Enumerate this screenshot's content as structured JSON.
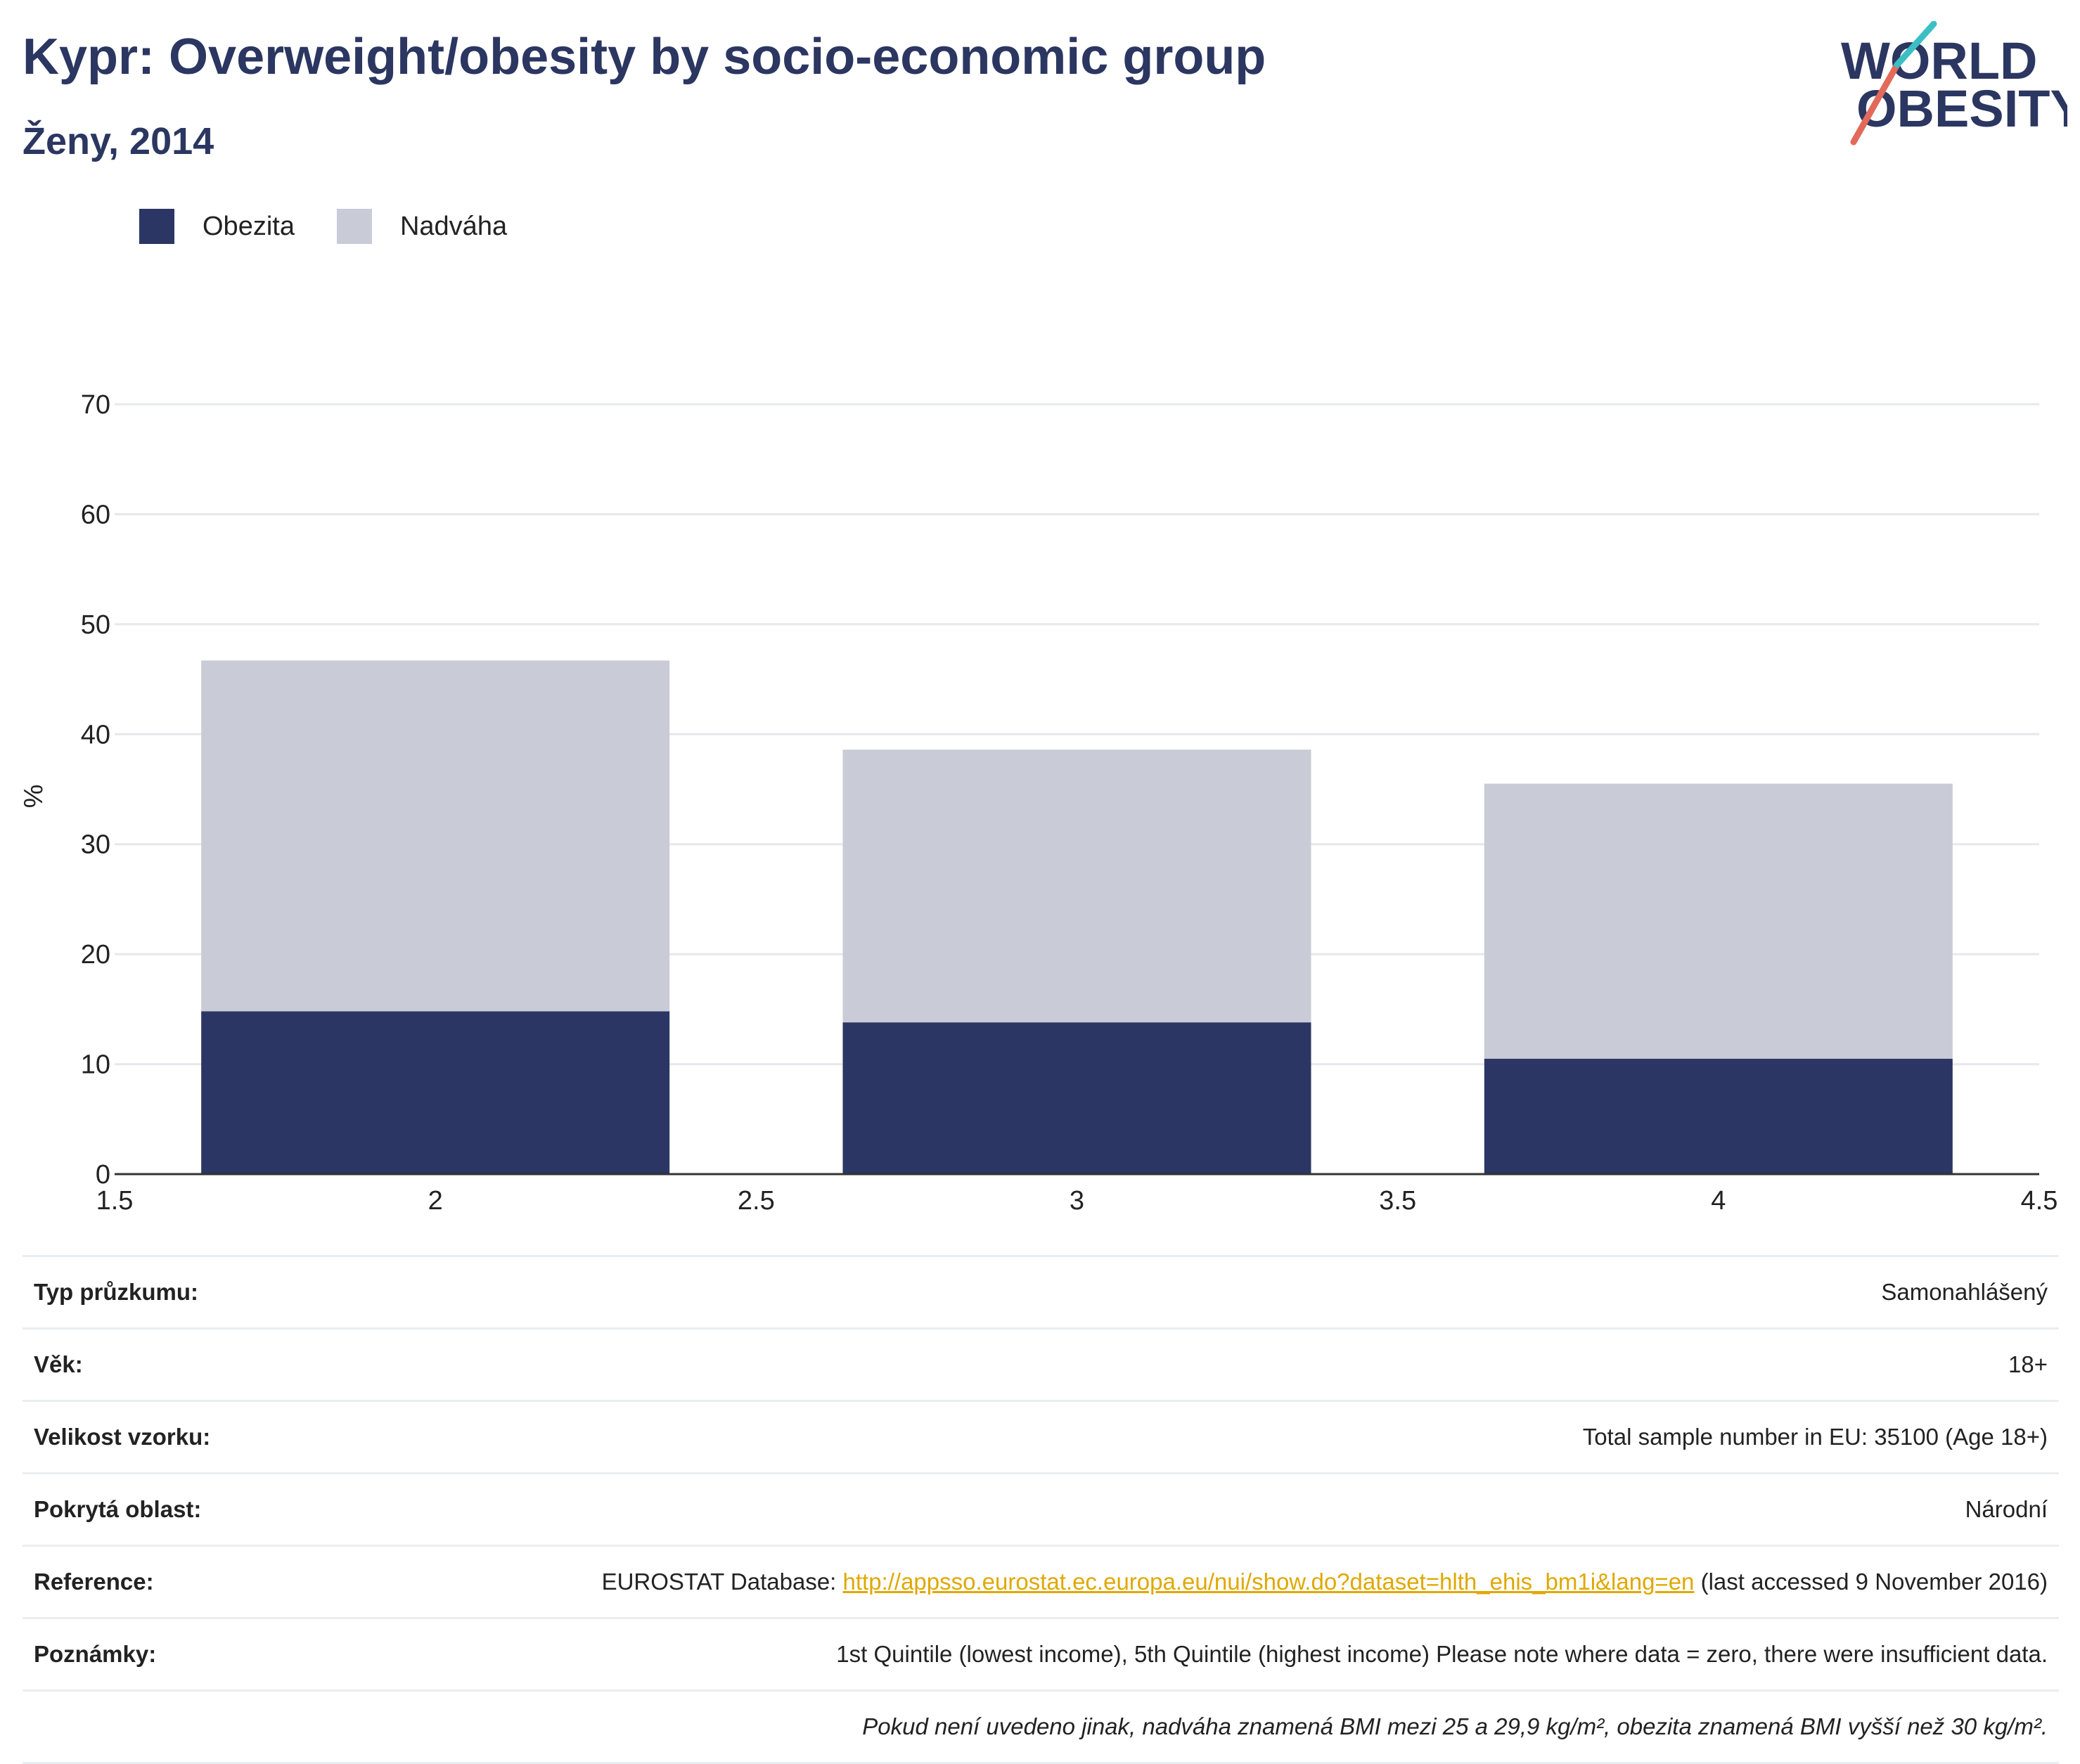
{
  "header": {
    "title": "Kypr: Overweight/obesity by socio-economic group",
    "subtitle": "Ženy, 2014",
    "logo_line1": "WORLD",
    "logo_line2": "OBESITY"
  },
  "legend": [
    {
      "label": "Obezita",
      "color": "#2b3664"
    },
    {
      "label": "Nadváha",
      "color": "#c9ccd7"
    }
  ],
  "chart_data": {
    "type": "bar",
    "stacked": true,
    "x": [
      2,
      3,
      4
    ],
    "xlim": [
      1.5,
      4.5
    ],
    "xticks": [
      1.5,
      2,
      2.5,
      3,
      3.5,
      4,
      4.5
    ],
    "xtick_labels": [
      "1.5",
      "2",
      "2.5",
      "3",
      "3.5",
      "4",
      "4.5"
    ],
    "ylim": [
      0,
      70
    ],
    "yticks": [
      0,
      10,
      20,
      30,
      40,
      50,
      60,
      70
    ],
    "ylabel": "%",
    "grid": true,
    "legend_position": "top-left",
    "series": [
      {
        "name": "Obezita",
        "color": "#2b3664",
        "values": [
          14.8,
          13.8,
          10.5
        ]
      },
      {
        "name": "Nadváha",
        "color": "#c9ccd7",
        "values": [
          31.9,
          24.8,
          25.0
        ]
      }
    ],
    "totals": [
      46.7,
      38.6,
      35.5
    ]
  },
  "info": {
    "survey_type_label": "Typ průzkumu:",
    "survey_type_value": "Samonahlášený",
    "age_label": "Věk:",
    "age_value": "18+",
    "sample_label": "Velikost vzorku:",
    "sample_value": "Total sample number in EU: 35100 (Age 18+)",
    "area_label": "Pokrytá oblast:",
    "area_value": "Národní",
    "reference_label": "Reference:",
    "reference_prefix": "EUROSTAT Database: ",
    "reference_link": "http://appsso.eurostat.ec.europa.eu/nui/show.do?dataset=hlth_ehis_bm1i&lang=en",
    "reference_suffix": " (last accessed 9 November 2016)",
    "notes_label": "Poznámky:",
    "notes_value": "1st Quintile (lowest income), 5th Quintile (highest income) Please note where data = zero, there were insufficient data.",
    "bmi_note": "Pokud není uvedeno jinak, nadváha znamená BMI mezi 25 a 29,9 kg/m², obezita znamená BMI vyšší než 30 kg/m²."
  }
}
